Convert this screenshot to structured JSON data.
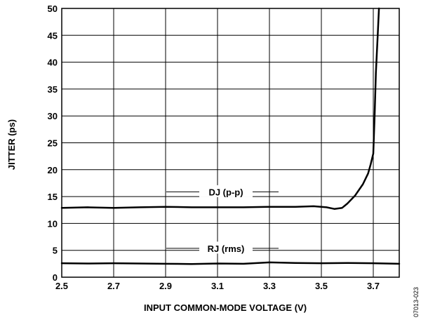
{
  "chart_data": {
    "type": "line",
    "xlabel": "INPUT COMMON-MODE VOLTAGE (V)",
    "ylabel": "JITTER (ps)",
    "xlim": [
      2.5,
      3.8
    ],
    "ylim": [
      0,
      50
    ],
    "x_ticks": [
      "2.5",
      "2.7",
      "2.9",
      "3.1",
      "3.3",
      "3.5",
      "3.7"
    ],
    "y_ticks": [
      "0",
      "5",
      "10",
      "15",
      "20",
      "25",
      "30",
      "35",
      "40",
      "45",
      "50"
    ],
    "grid": true,
    "legend": "none",
    "series": [
      {
        "name": "DJ (p-p)",
        "points": [
          [
            2.5,
            12.9
          ],
          [
            2.6,
            13.0
          ],
          [
            2.7,
            12.9
          ],
          [
            2.8,
            13.0
          ],
          [
            2.9,
            13.1
          ],
          [
            3.0,
            13.0
          ],
          [
            3.1,
            13.0
          ],
          [
            3.2,
            13.0
          ],
          [
            3.3,
            13.1
          ],
          [
            3.4,
            13.1
          ],
          [
            3.47,
            13.2
          ],
          [
            3.52,
            13.0
          ],
          [
            3.55,
            12.7
          ],
          [
            3.58,
            12.9
          ],
          [
            3.6,
            13.7
          ],
          [
            3.63,
            15.2
          ],
          [
            3.66,
            17.3
          ],
          [
            3.68,
            19.3
          ],
          [
            3.69,
            21.0
          ],
          [
            3.7,
            23.0
          ],
          [
            3.705,
            30.0
          ],
          [
            3.71,
            38.0
          ],
          [
            3.717,
            45.0
          ],
          [
            3.722,
            50.0
          ]
        ]
      },
      {
        "name": "RJ (rms)",
        "points": [
          [
            2.5,
            2.6
          ],
          [
            2.6,
            2.55
          ],
          [
            2.7,
            2.6
          ],
          [
            2.8,
            2.55
          ],
          [
            2.9,
            2.5
          ],
          [
            3.0,
            2.45
          ],
          [
            3.1,
            2.55
          ],
          [
            3.2,
            2.5
          ],
          [
            3.3,
            2.75
          ],
          [
            3.4,
            2.65
          ],
          [
            3.5,
            2.6
          ],
          [
            3.6,
            2.65
          ],
          [
            3.7,
            2.6
          ],
          [
            3.8,
            2.5
          ]
        ]
      }
    ]
  },
  "figure_id": "07013-023"
}
